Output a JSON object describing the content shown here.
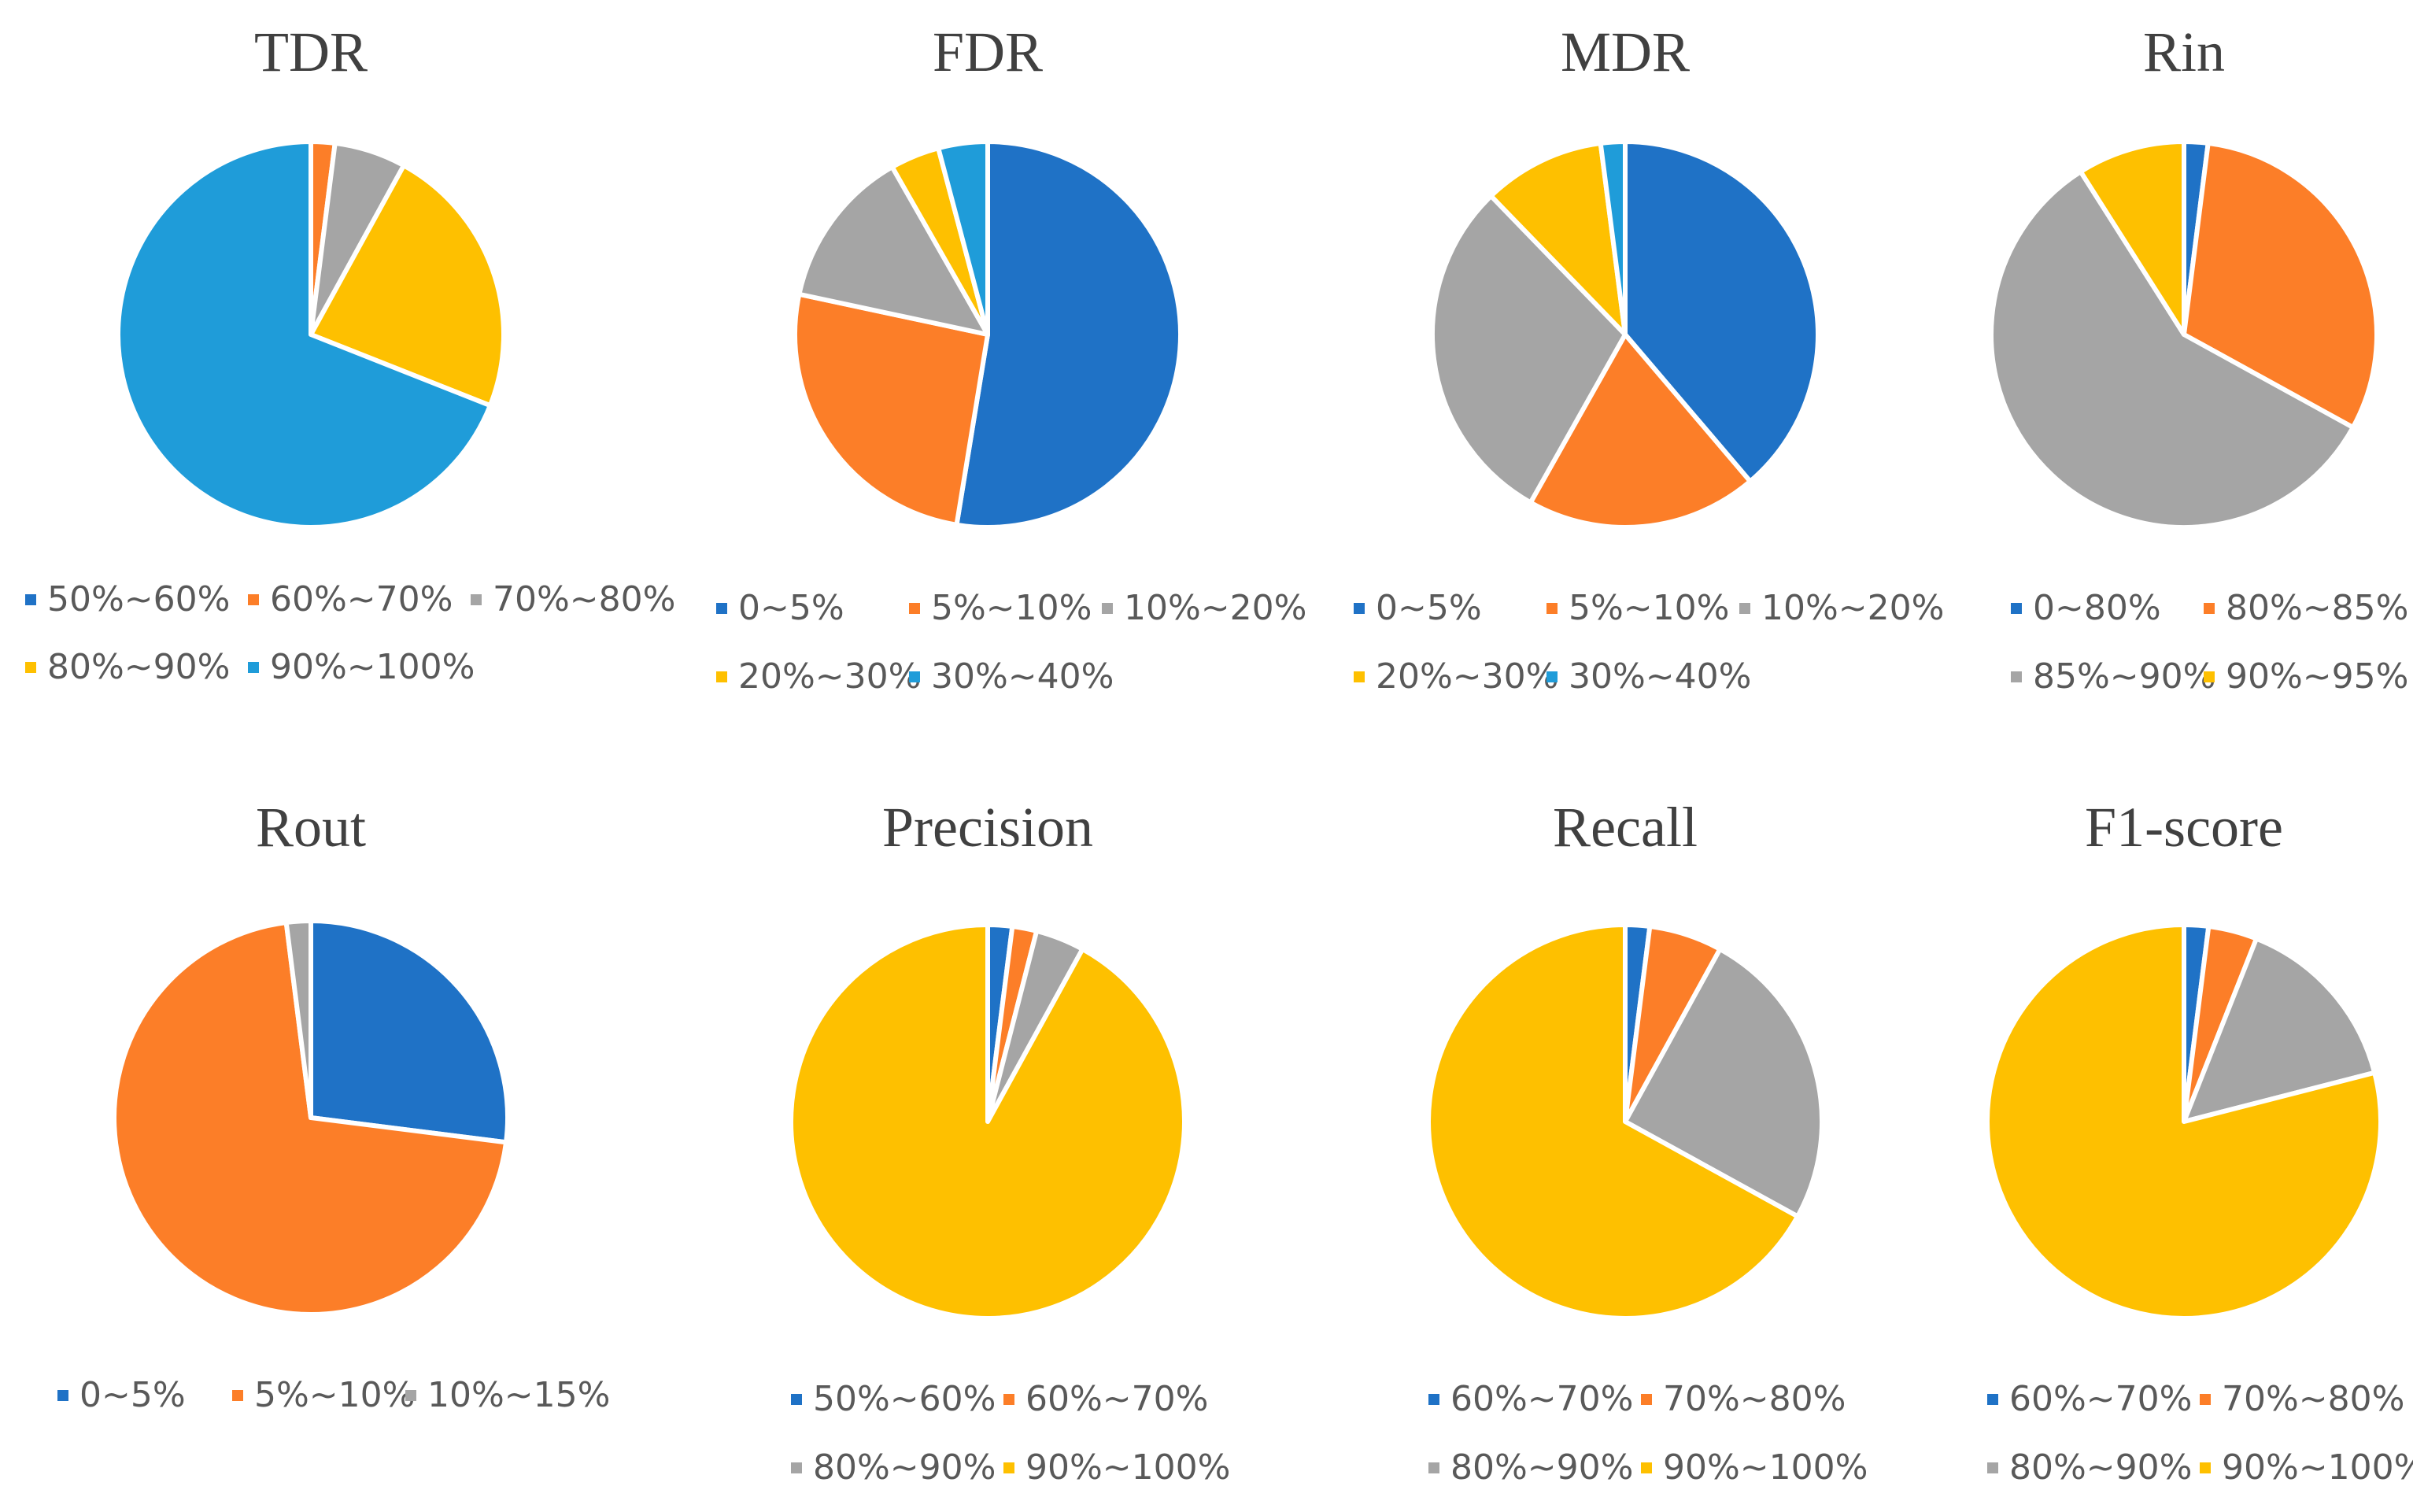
{
  "colors": {
    "blue": "#1f72c6",
    "orange": "#fc7e28",
    "gray": "#a5a5a5",
    "yellow": "#fec000",
    "lightblue": "#1f9cd9",
    "text": "#595959",
    "title": "#404040"
  },
  "chart_data": [
    {
      "type": "pie",
      "title": "TDR",
      "labels": [
        "50%~60%",
        "60%~70%",
        "70%~80%",
        "80%~90%",
        "90%~100%"
      ],
      "values": [
        0,
        2,
        6,
        23,
        69
      ],
      "colors": [
        "blue",
        "orange",
        "gray",
        "yellow",
        "lightblue"
      ],
      "legend": "bottom"
    },
    {
      "type": "pie",
      "title": "FDR",
      "labels": [
        "0~5%",
        "5%~10%",
        "10%~20%",
        "20%~30%",
        "30%~40%"
      ],
      "values": [
        51,
        25,
        13,
        4,
        4
      ],
      "colors": [
        "blue",
        "orange",
        "gray",
        "yellow",
        "lightblue"
      ],
      "legend": "bottom"
    },
    {
      "type": "pie",
      "title": "MDR",
      "labels": [
        "0~5%",
        "5%~10%",
        "10%~20%",
        "20%~30%",
        "30%~40%"
      ],
      "values": [
        38,
        19,
        29,
        10,
        2
      ],
      "colors": [
        "blue",
        "orange",
        "gray",
        "yellow",
        "lightblue"
      ],
      "legend": "bottom"
    },
    {
      "type": "pie",
      "title": "Rin",
      "labels": [
        "0~80%",
        "80%~85%",
        "85%~90%",
        "90%~95%"
      ],
      "values": [
        2,
        31,
        58,
        9
      ],
      "colors": [
        "blue",
        "orange",
        "gray",
        "yellow"
      ],
      "legend": "bottom"
    },
    {
      "type": "pie",
      "title": "Rout",
      "labels": [
        "0~5%",
        "5%~10%",
        "10%~15%"
      ],
      "values": [
        27,
        71,
        2
      ],
      "colors": [
        "blue",
        "orange",
        "gray"
      ],
      "legend": "bottom"
    },
    {
      "type": "pie",
      "title": "Precision",
      "labels": [
        "50%~60%",
        "60%~70%",
        "80%~90%",
        "90%~100%"
      ],
      "values": [
        2,
        2,
        4,
        92
      ],
      "colors": [
        "blue",
        "orange",
        "gray",
        "yellow"
      ],
      "legend": "bottom"
    },
    {
      "type": "pie",
      "title": "Recall",
      "labels": [
        "60%~70%",
        "70%~80%",
        "80%~90%",
        "90%~100%"
      ],
      "values": [
        2,
        6,
        25,
        67
      ],
      "colors": [
        "blue",
        "orange",
        "gray",
        "yellow"
      ],
      "legend": "bottom"
    },
    {
      "type": "pie",
      "title": "F1-score",
      "labels": [
        "60%~70%",
        "70%~80%",
        "80%~90%",
        "90%~100%"
      ],
      "values": [
        2,
        4,
        15,
        79
      ],
      "colors": [
        "blue",
        "orange",
        "gray",
        "yellow"
      ],
      "legend": "bottom"
    }
  ]
}
